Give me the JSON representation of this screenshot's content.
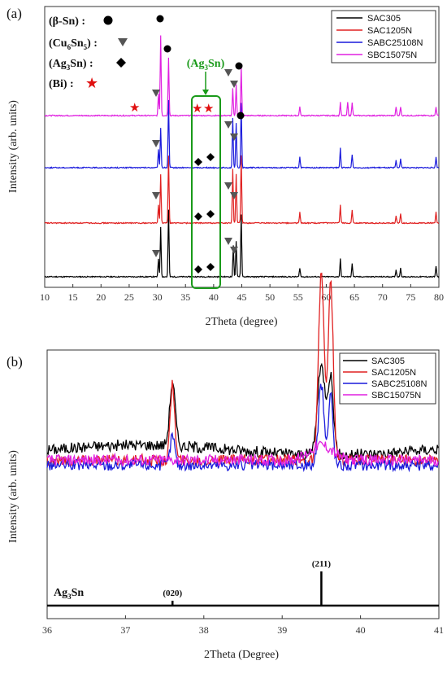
{
  "chart_data": [
    {
      "panel": "(a)",
      "type": "line",
      "xlabel": "2Theta (degree)",
      "ylabel": "Intensity (arb. units)",
      "xlim": [
        10,
        80
      ],
      "xticks": [
        "10",
        "15",
        "20",
        "25",
        "30",
        "35",
        "40",
        "45",
        "50",
        "55",
        "60",
        "65",
        "70",
        "75",
        "80"
      ],
      "legend": {
        "placement": "top-right",
        "entries": [
          "SAC305",
          "SAC1205N",
          "SABC25108N",
          "SBC15075N"
        ]
      },
      "series": [
        {
          "name": "SAC305",
          "color": "#000000",
          "offset": 0,
          "peaks": [
            [
              30.6,
              0.55
            ],
            [
              30.2,
              0.2
            ],
            [
              32.0,
              0.75
            ],
            [
              43.5,
              0.35
            ],
            [
              44.0,
              0.4
            ],
            [
              44.9,
              0.7
            ],
            [
              55.3,
              0.1
            ],
            [
              62.5,
              0.2
            ],
            [
              64.6,
              0.15
            ],
            [
              72.4,
              0.08
            ],
            [
              73.2,
              0.1
            ],
            [
              79.5,
              0.12
            ]
          ]
        },
        {
          "name": "SAC1205N",
          "color": "#e02020",
          "offset": 1,
          "peaks": [
            [
              30.6,
              0.55
            ],
            [
              30.2,
              0.2
            ],
            [
              32.0,
              0.75
            ],
            [
              43.4,
              0.6
            ],
            [
              44.0,
              0.55
            ],
            [
              44.9,
              0.75
            ],
            [
              55.3,
              0.12
            ],
            [
              62.5,
              0.2
            ],
            [
              64.6,
              0.15
            ],
            [
              72.4,
              0.08
            ],
            [
              73.2,
              0.1
            ],
            [
              79.5,
              0.12
            ]
          ]
        },
        {
          "name": "SABC25108N",
          "color": "#1a1adc",
          "offset": 2,
          "peaks": [
            [
              30.6,
              0.45
            ],
            [
              30.2,
              0.2
            ],
            [
              32.0,
              0.75
            ],
            [
              43.4,
              0.55
            ],
            [
              44.0,
              0.5
            ],
            [
              44.9,
              0.72
            ],
            [
              55.3,
              0.12
            ],
            [
              62.5,
              0.22
            ],
            [
              64.6,
              0.15
            ],
            [
              72.4,
              0.08
            ],
            [
              73.2,
              0.1
            ],
            [
              79.5,
              0.12
            ]
          ]
        },
        {
          "name": "SBC15075N",
          "color": "#e020e0",
          "offset": 3,
          "peaks": [
            [
              30.6,
              0.9
            ],
            [
              30.2,
              0.25
            ],
            [
              32.0,
              0.65
            ],
            [
              43.4,
              0.3
            ],
            [
              44.0,
              0.35
            ],
            [
              44.9,
              0.55
            ],
            [
              55.3,
              0.1
            ],
            [
              62.5,
              0.15
            ],
            [
              63.8,
              0.15
            ],
            [
              64.6,
              0.15
            ],
            [
              72.4,
              0.1
            ],
            [
              73.2,
              0.1
            ],
            [
              79.5,
              0.1
            ]
          ]
        }
      ],
      "phase_legend": [
        {
          "label": "(β-Sn) :",
          "symbol": "●",
          "color": "#000000"
        },
        {
          "label": "(Cu6Sn5) :",
          "symbol": "▼",
          "color": "#555555"
        },
        {
          "label": "(Ag3Sn) :",
          "symbol": "◆",
          "color": "#000000"
        },
        {
          "label": "(Bi) :",
          "symbol": "★",
          "color": "#e01010"
        }
      ],
      "annotation": {
        "label": "(Ag3Sn)",
        "x_range": [
          37.5,
          40.5
        ],
        "color": "#1a9a1a"
      }
    },
    {
      "panel": "(b)",
      "type": "line",
      "xlabel": "2Theta (Degree)",
      "ylabel": "Intensity (arb. units)",
      "xlim": [
        36,
        41
      ],
      "xticks": [
        "36",
        "37",
        "38",
        "39",
        "40",
        "41"
      ],
      "legend": {
        "placement": "top-right",
        "entries": [
          "SAC305",
          "SAC1205N",
          "SABC25108N",
          "SBC15075N"
        ]
      },
      "series": [
        {
          "name": "SAC305",
          "color": "#000000",
          "base": 0.62,
          "peaks": [
            [
              37.6,
              0.25,
              0.05
            ],
            [
              39.5,
              0.35,
              0.07
            ],
            [
              39.62,
              0.3,
              0.05
            ]
          ]
        },
        {
          "name": "SAC1205N",
          "color": "#e02020",
          "base": 0.58,
          "peaks": [
            [
              37.6,
              0.3,
              0.04
            ],
            [
              39.5,
              0.75,
              0.05
            ],
            [
              39.62,
              0.7,
              0.045
            ]
          ]
        },
        {
          "name": "SABC25108N",
          "color": "#1a1adc",
          "base": 0.56,
          "peaks": [
            [
              37.6,
              0.12,
              0.04
            ],
            [
              39.5,
              0.32,
              0.05
            ],
            [
              39.62,
              0.28,
              0.04
            ]
          ]
        },
        {
          "name": "SBC15075N",
          "color": "#e020e0",
          "base": 0.58,
          "peaks": [
            [
              39.5,
              0.06,
              0.2
            ]
          ]
        }
      ],
      "reference": {
        "label": "Ag3Sn",
        "lines": [
          {
            "x": 37.6,
            "label": "(020)",
            "rel": 0.1
          },
          {
            "x": 39.5,
            "label": "(211)",
            "rel": 1.0
          }
        ]
      }
    }
  ]
}
